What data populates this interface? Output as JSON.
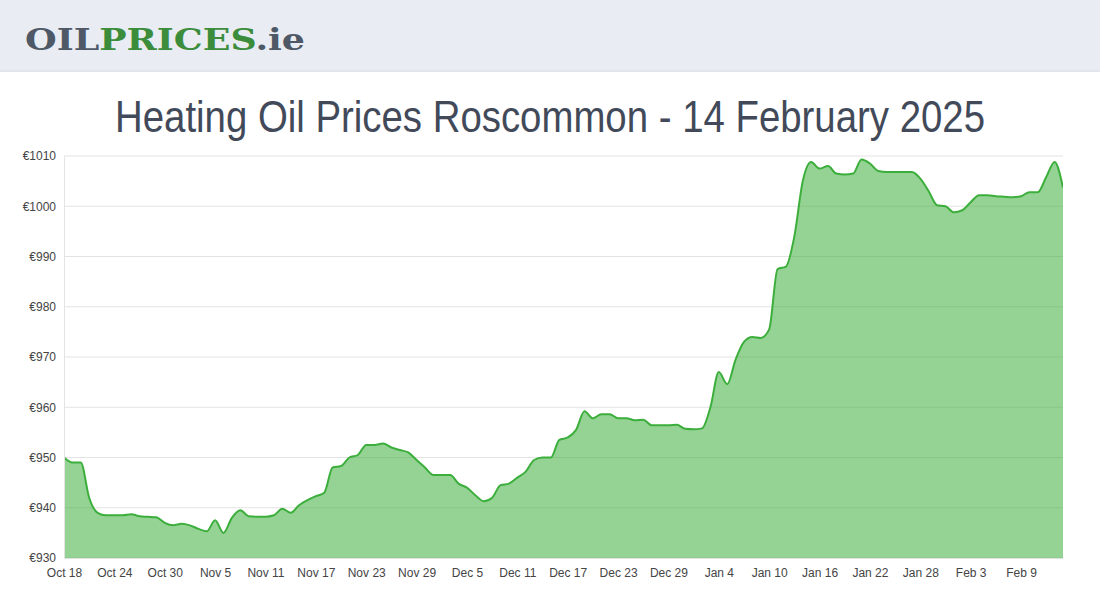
{
  "header": {
    "logo": [
      "OIL",
      "PRICES",
      ".ie"
    ]
  },
  "chart_data": {
    "type": "area",
    "title": "Heating Oil Prices Roscommon - 14 February 2025",
    "color": "#3cae3c",
    "grid": true,
    "categories": [
      "Oct 18",
      null,
      null,
      null,
      null,
      null,
      "Oct 24",
      null,
      null,
      null,
      null,
      null,
      "Oct 30",
      null,
      null,
      null,
      null,
      null,
      "Nov 5",
      null,
      null,
      null,
      null,
      null,
      "Nov 11",
      null,
      null,
      null,
      null,
      null,
      "Nov 17",
      null,
      null,
      null,
      null,
      null,
      "Nov 23",
      null,
      null,
      null,
      null,
      null,
      "Nov 29",
      null,
      null,
      null,
      null,
      null,
      "Dec 5",
      null,
      null,
      null,
      null,
      null,
      "Dec 11",
      null,
      null,
      null,
      null,
      null,
      "Dec 17",
      null,
      null,
      null,
      null,
      null,
      "Dec 23",
      null,
      null,
      null,
      null,
      null,
      "Dec 29",
      null,
      null,
      null,
      null,
      null,
      "Jan 4",
      null,
      null,
      null,
      null,
      null,
      "Jan 10",
      null,
      null,
      null,
      null,
      null,
      "Jan 16",
      null,
      null,
      null,
      null,
      null,
      "Jan 22",
      null,
      null,
      null,
      null,
      null,
      "Jan 28",
      null,
      null,
      null,
      null,
      null,
      "Feb 3",
      null,
      null,
      null,
      null,
      null,
      "Feb 9",
      null,
      null,
      null,
      null,
      null
    ],
    "values": [
      950,
      949,
      949,
      942,
      939,
      938.5,
      938.5,
      938.5,
      938.7,
      938.3,
      938.2,
      938.1,
      937,
      936.5,
      936.8,
      936.5,
      935.8,
      935.3,
      937.5,
      935,
      938,
      939.5,
      938.3,
      938.2,
      938.2,
      938.5,
      939.8,
      939,
      940.5,
      941.5,
      942.3,
      943,
      948,
      948.3,
      950,
      950.5,
      952.5,
      952.5,
      952.8,
      952,
      951.5,
      951,
      949.5,
      948,
      946.5,
      946.5,
      946.5,
      944.8,
      944,
      942.5,
      941.3,
      942,
      944.5,
      944.8,
      946,
      947.2,
      949.5,
      950,
      950,
      953.5,
      954,
      955.5,
      959.2,
      957.8,
      958.6,
      958.6,
      957.8,
      957.8,
      957.4,
      957.5,
      956.4,
      956.4,
      956.4,
      956.5,
      955.7,
      955.6,
      955.8,
      960,
      967,
      964.6,
      969.5,
      973,
      974,
      973.8,
      975.5,
      987.5,
      988,
      994,
      1005,
      1008.8,
      1007.5,
      1008,
      1006.5,
      1006.3,
      1006.5,
      1009.3,
      1008.5,
      1007,
      1006.8,
      1006.8,
      1006.8,
      1006.8,
      1005.5,
      1003,
      1000.2,
      1000,
      998.8,
      999.2,
      1000.8,
      1002.2,
      1002.2,
      1002,
      1001.9,
      1001.8,
      1002,
      1002.8,
      1002.8,
      1005.8,
      1008.8,
      1003.7
    ],
    "ylim": [
      930,
      1010
    ],
    "yticks": [
      {
        "value": 930,
        "label": "€930"
      },
      {
        "value": 940,
        "label": "€940"
      },
      {
        "value": 950,
        "label": "€950"
      },
      {
        "value": 960,
        "label": "€960"
      },
      {
        "value": 970,
        "label": "€970"
      },
      {
        "value": 980,
        "label": "€980"
      },
      {
        "value": 990,
        "label": "€990"
      },
      {
        "value": 1000,
        "label": "€1000"
      },
      {
        "value": 1010,
        "label": "€1010"
      }
    ]
  }
}
